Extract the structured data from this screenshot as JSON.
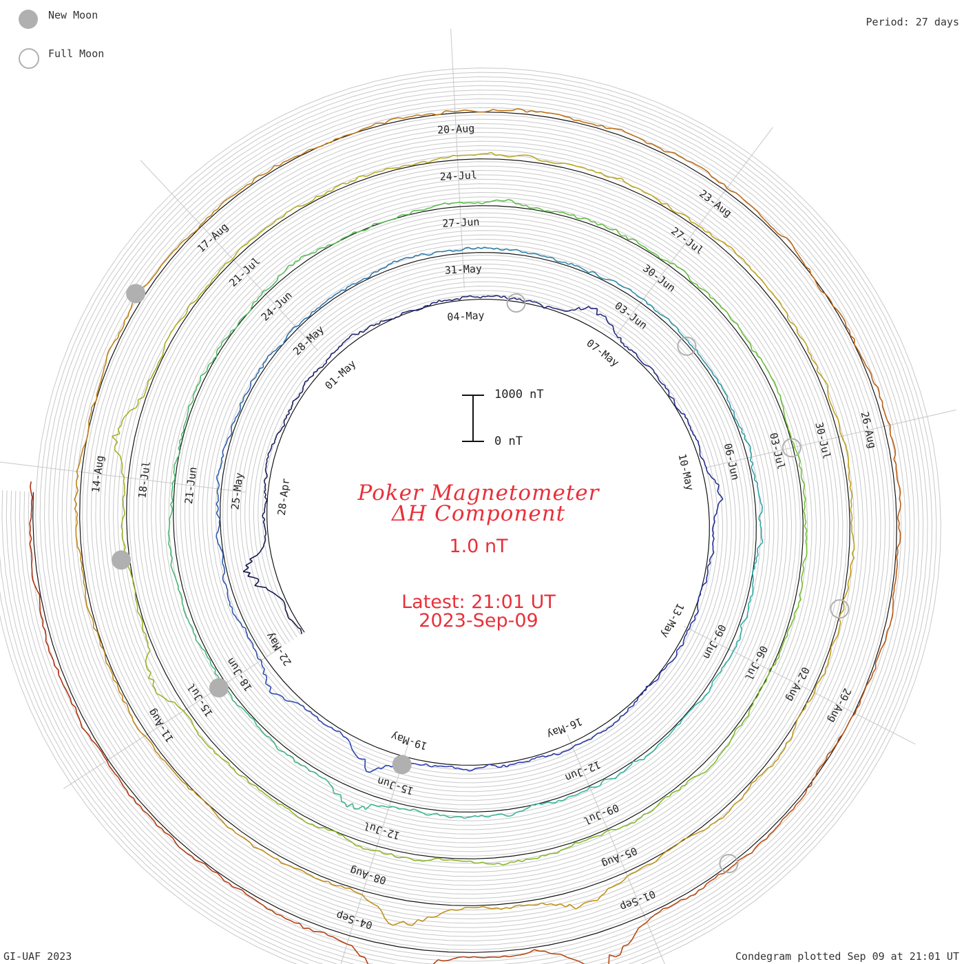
{
  "legend": {
    "new_moon": "New Moon",
    "full_moon": "Full Moon"
  },
  "period": "Period: 27 days",
  "title_line1": "Poker Magnetometer",
  "title_line2": "ΔH Component",
  "resolution": "1.0 nT",
  "latest_time": "Latest: 21:01 UT",
  "latest_date": "2023-Sep-09",
  "scale": {
    "top": "1000 nT",
    "bottom": "0 nT"
  },
  "footer_left": "GI-UAF 2023",
  "footer_right": "Condegram plotted Sep 09 at 21:01 UT",
  "chart_data": {
    "type": "condegram-spiral",
    "period_days": 27,
    "start_date": "2023-04-25",
    "end": "2023-09-09 21:01 UT",
    "variable": "ΔH",
    "unit": "nT",
    "scale_bar_nT": [
      0,
      1000
    ],
    "date_labels": [
      "28-Apr",
      "01-May",
      "04-May",
      "07-May",
      "10-May",
      "13-May",
      "16-May",
      "19-May",
      "22-May",
      "25-May",
      "28-May",
      "31-May",
      "03-Jun",
      "06-Jun",
      "09-Jun",
      "12-Jun",
      "15-Jun",
      "18-Jun",
      "21-Jun",
      "24-Jun",
      "27-Jun",
      "30-Jun",
      "03-Jul",
      "06-Jul",
      "09-Jul",
      "12-Jul",
      "15-Jul",
      "18-Jul",
      "21-Jul",
      "24-Jul",
      "27-Jul",
      "30-Jul",
      "02-Aug",
      "05-Aug",
      "08-Aug",
      "11-Aug",
      "14-Aug",
      "17-Aug",
      "20-Aug",
      "23-Aug",
      "26-Aug",
      "29-Aug",
      "01-Sep",
      "04-Sep"
    ],
    "new_moon_dates": [
      "2023-05-19",
      "2023-06-18",
      "2023-07-17",
      "2023-08-16"
    ],
    "full_moon_dates": [
      "2023-05-05",
      "2023-06-04",
      "2023-07-03",
      "2023-08-01",
      "2023-08-31"
    ],
    "turn_colors": [
      "#141446",
      "#2a38b0",
      "#2bb3a8",
      "#6cbf2e",
      "#bfa81c",
      "#b03c12"
    ],
    "series_color_gradient": [
      "#141446",
      "#2a38b0",
      "#2bb3a8",
      "#6cbf2e",
      "#bfa81c",
      "#c07c14",
      "#b02a10"
    ],
    "disturbance_peaks_nT": [
      {
        "date": "2023-04-26",
        "value": 650
      },
      {
        "date": "2023-05-06",
        "value": 450
      },
      {
        "date": "2023-05-10",
        "value": 300
      },
      {
        "date": "2023-05-19",
        "value": 520
      },
      {
        "date": "2023-05-21",
        "value": 380
      },
      {
        "date": "2023-06-15",
        "value": 400
      },
      {
        "date": "2023-07-15",
        "value": 350
      },
      {
        "date": "2023-07-18",
        "value": 420
      },
      {
        "date": "2023-08-05",
        "value": 450
      },
      {
        "date": "2023-08-07",
        "value": 600
      },
      {
        "date": "2023-09-01",
        "value": 800
      },
      {
        "date": "2023-09-03",
        "value": 750
      }
    ]
  }
}
